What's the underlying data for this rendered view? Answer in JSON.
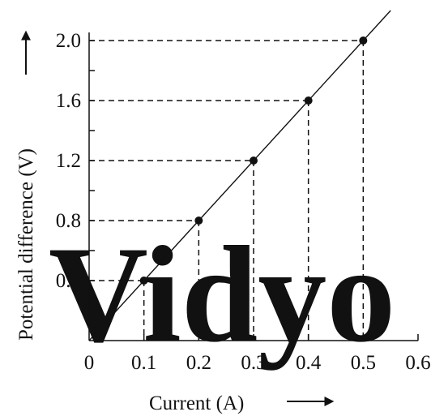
{
  "chart_data": {
    "type": "line",
    "title": "",
    "xlabel": "Current (A)",
    "ylabel": "Potential difference (V)",
    "xlim": [
      0,
      0.6
    ],
    "ylim": [
      0,
      2.0
    ],
    "x_ticks": [
      "0",
      "0.1",
      "0.2",
      "0.3",
      "0.4",
      "0.5",
      "0.6"
    ],
    "x_tick_values": [
      0,
      0.1,
      0.2,
      0.3,
      0.4,
      0.5,
      0.6
    ],
    "y_ticks": [
      "0.4",
      "0.8",
      "1.2",
      "1.6",
      "2.0"
    ],
    "y_tick_values": [
      0.4,
      0.8,
      1.2,
      1.6,
      2.0
    ],
    "y_minor_step": 0.2,
    "grid": false,
    "projection_lines": "dashed",
    "series": [
      {
        "x": [
          0.1,
          0.2,
          0.3,
          0.4,
          0.5
        ],
        "y": [
          0.4,
          0.8,
          1.2,
          1.6,
          2.0
        ]
      }
    ],
    "fit_line": {
      "through_origin": true,
      "slope": 4.0
    },
    "watermark": "Vidyo",
    "colors": {
      "ink": "#111111",
      "watermark": "#eef2f4"
    }
  }
}
